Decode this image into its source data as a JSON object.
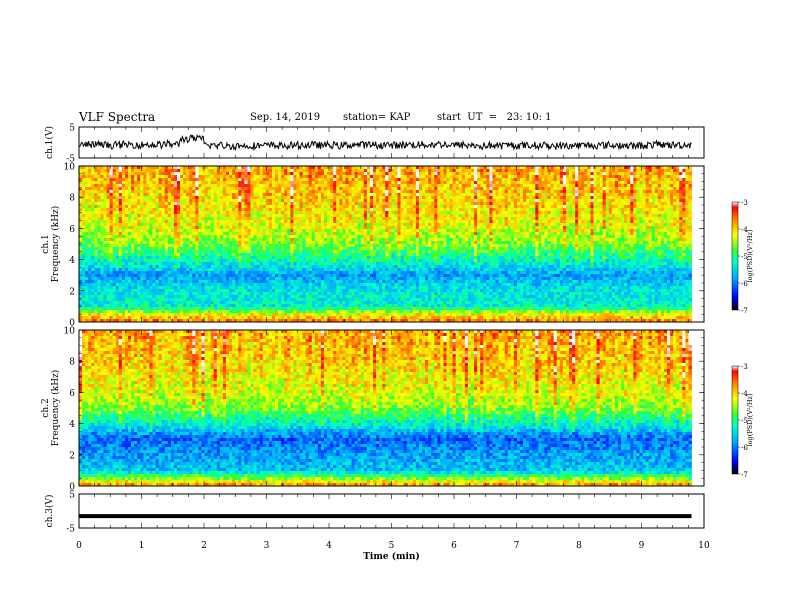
{
  "header": {
    "title": "VLF Spectra",
    "date": "Sep. 14, 2019",
    "station": "station= KAP",
    "start": "start  UT  =   23: 10: 1"
  },
  "chart_data": [
    {
      "type": "line",
      "name": "ch1-waveform",
      "ylabel": "ch.1(V)",
      "x_range": [
        0,
        10
      ],
      "ylim": [
        -5,
        5
      ],
      "y_ticks": [
        "5",
        "-5"
      ],
      "data_extent_min": 9.8,
      "mean_level": -0.8,
      "fluctuation": 1.2
    },
    {
      "type": "heatmap",
      "name": "ch1-spectrogram",
      "ylabel": "Frequency  (kHz)",
      "channel_label": "ch.1",
      "x_range": [
        0,
        9.8
      ],
      "ylim": [
        0,
        10
      ],
      "y_ticks": [
        "0",
        "2",
        "4",
        "6",
        "8",
        "10"
      ],
      "colorbar": {
        "label": "log(PSD)(V²/Hz)",
        "range": [
          -7,
          -3
        ],
        "ticks": [
          "-3",
          "-4",
          "-5",
          "-6",
          "-7"
        ]
      },
      "mean_log_psd_by_freq_khz": [
        [
          0,
          -3.6
        ],
        [
          0.5,
          -4.2
        ],
        [
          1,
          -5.3
        ],
        [
          2,
          -5.4
        ],
        [
          3,
          -5.8
        ],
        [
          4,
          -5.2
        ],
        [
          5,
          -4.6
        ],
        [
          6,
          -4.3
        ],
        [
          8,
          -4.0
        ],
        [
          10,
          -3.8
        ]
      ]
    },
    {
      "type": "heatmap",
      "name": "ch2-spectrogram",
      "ylabel": "Frequency  (kHz)",
      "channel_label": "ch.2",
      "x_range": [
        0,
        9.8
      ],
      "ylim": [
        0,
        10
      ],
      "y_ticks": [
        "0",
        "2",
        "4",
        "6",
        "8",
        "10"
      ],
      "colorbar": {
        "label": "log(PSD)(V²/Hz)",
        "range": [
          -7,
          -3
        ],
        "ticks": [
          "-3",
          "-4",
          "-5",
          "-6",
          "-7"
        ]
      },
      "mean_log_psd_by_freq_khz": [
        [
          0,
          -3.6
        ],
        [
          0.5,
          -4.6
        ],
        [
          1,
          -5.6
        ],
        [
          2,
          -5.8
        ],
        [
          3,
          -6.1
        ],
        [
          4,
          -5.3
        ],
        [
          5,
          -4.6
        ],
        [
          6,
          -4.3
        ],
        [
          8,
          -4.0
        ],
        [
          10,
          -3.8
        ]
      ]
    },
    {
      "type": "line",
      "name": "ch3-waveform",
      "ylabel": "ch.3(V)",
      "xlabel": "Time  (min)",
      "x_range": [
        0,
        10
      ],
      "x_ticks": [
        "0",
        "1",
        "2",
        "3",
        "4",
        "5",
        "6",
        "7",
        "8",
        "9",
        "10"
      ],
      "ylim": [
        -5,
        5
      ],
      "y_ticks": [
        "5",
        "-5"
      ],
      "data_extent_min": 9.8,
      "constant_level": -1.5
    }
  ]
}
